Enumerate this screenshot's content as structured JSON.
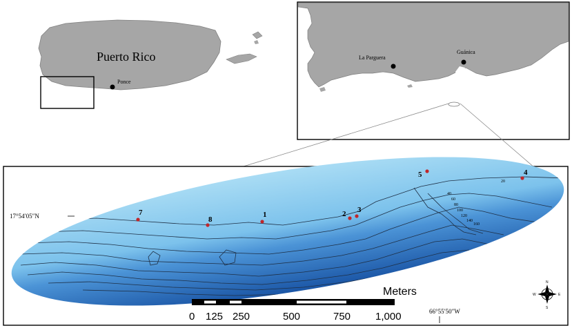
{
  "overview_map": {
    "island_label": "Puerto Rico",
    "city_label": "Ponce"
  },
  "inset_map": {
    "town_1": "La Parguera",
    "town_2": "Guánica"
  },
  "detail_map": {
    "lat_label": "17°54′05″N",
    "lon_label": "66°55′50″W",
    "sites": [
      {
        "label": "1"
      },
      {
        "label": "2"
      },
      {
        "label": "3"
      },
      {
        "label": "4"
      },
      {
        "label": "5"
      },
      {
        "label": "7"
      },
      {
        "label": "8"
      }
    ],
    "depth_labels": [
      "20",
      "40",
      "60",
      "80",
      "100",
      "120",
      "140",
      "160"
    ],
    "scale_bar": {
      "unit": "Meters",
      "ticks": [
        "0",
        "125",
        "250",
        "500",
        "750",
        "1,000"
      ]
    },
    "compass": {
      "n": "N",
      "s": "S",
      "e": "E",
      "w": "W"
    }
  },
  "colors": {
    "land": "#a6a6a6",
    "shallow_water": "#9fd4f0",
    "deep_water": "#1c5aa8",
    "site_marker": "#c0262a"
  }
}
